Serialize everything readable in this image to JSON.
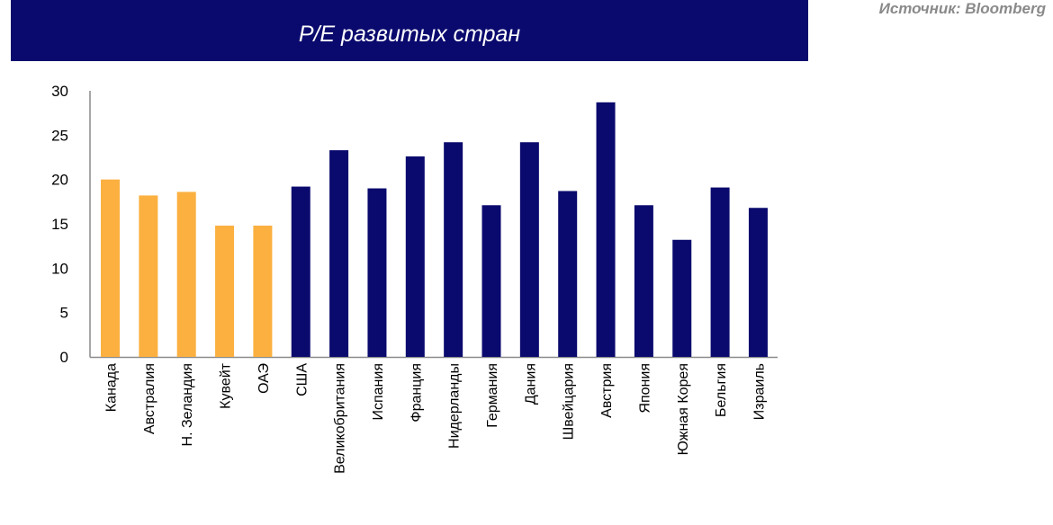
{
  "chart_data": {
    "type": "bar",
    "title": "P/E развитых стран",
    "source": "Источник: Bloomberg",
    "categories": [
      "Канада",
      "Австралия",
      "Н. Зеландия",
      "Кувейт",
      "ОАЭ",
      "США",
      "Великобритания",
      "Испания",
      "Франция",
      "Нидерланды",
      "Германия",
      "Дания",
      "Швейцария",
      "Австрия",
      "Япония",
      "Южная Корея",
      "Бельгия",
      "Израиль"
    ],
    "values": [
      20.0,
      18.2,
      18.6,
      14.8,
      14.8,
      19.2,
      23.3,
      19.0,
      22.6,
      24.2,
      17.1,
      24.2,
      18.7,
      28.7,
      17.1,
      13.2,
      19.1,
      16.8
    ],
    "colors": [
      "#fbb040",
      "#fbb040",
      "#fbb040",
      "#fbb040",
      "#fbb040",
      "#0a0a6e",
      "#0a0a6e",
      "#0a0a6e",
      "#0a0a6e",
      "#0a0a6e",
      "#0a0a6e",
      "#0a0a6e",
      "#0a0a6e",
      "#0a0a6e",
      "#0a0a6e",
      "#0a0a6e",
      "#0a0a6e",
      "#0a0a6e"
    ],
    "ylim": [
      0,
      30
    ],
    "yticks": [
      "0",
      "5",
      "10",
      "15",
      "20",
      "25",
      "30"
    ],
    "grid": false,
    "legend": "none",
    "xlabel": "",
    "ylabel": ""
  }
}
